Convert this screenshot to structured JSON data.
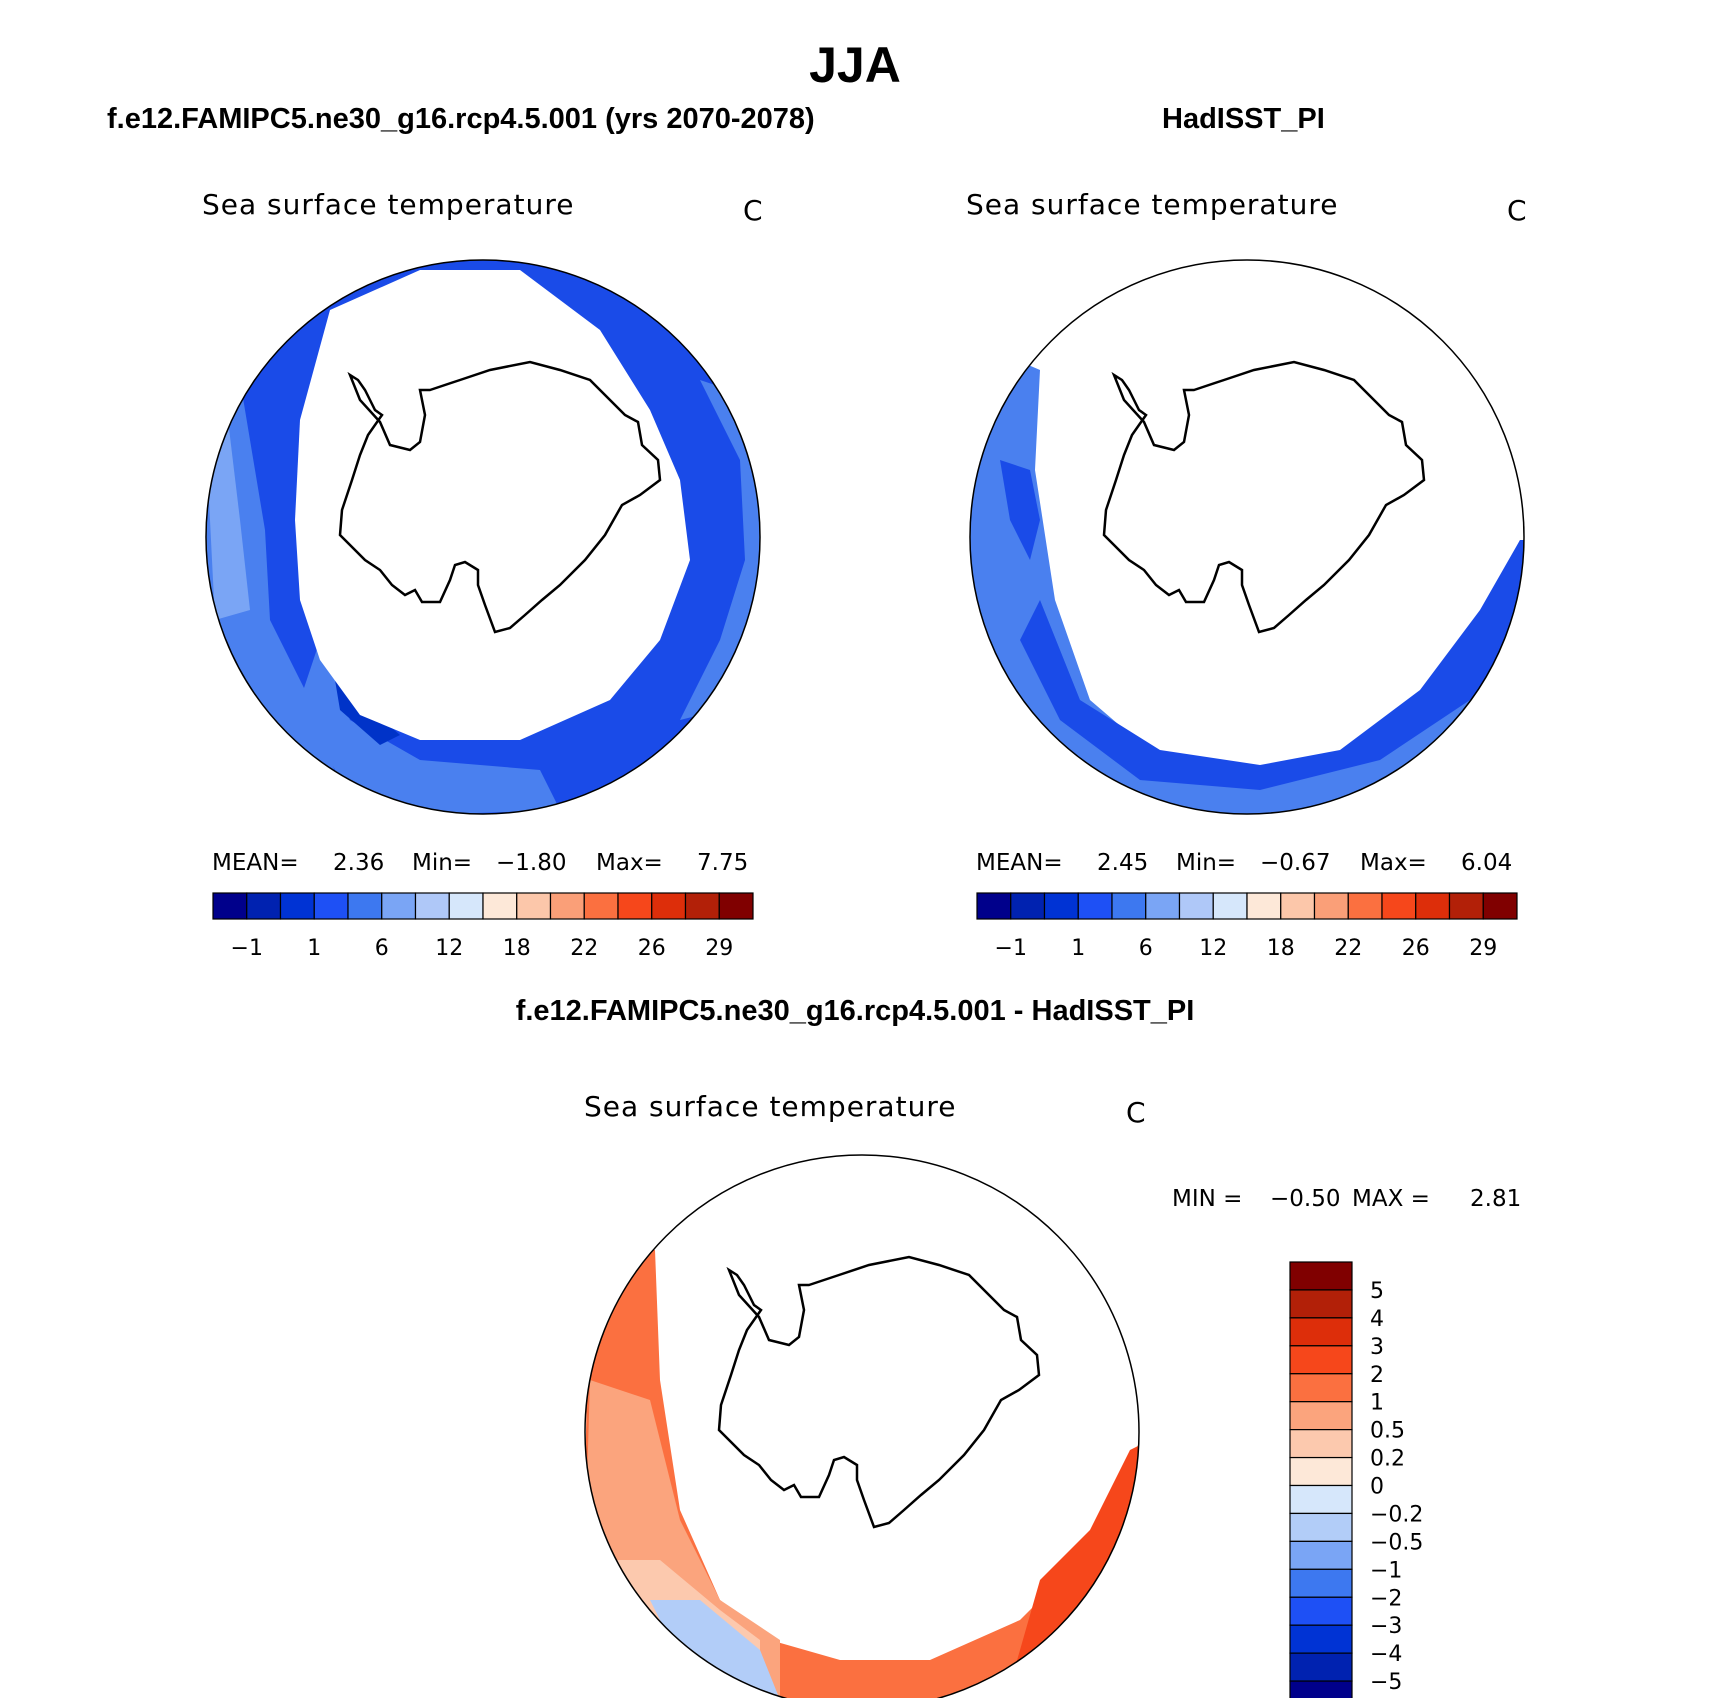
{
  "title": "JJA",
  "panels": [
    {
      "title": "f.e12.FAMIPC5.ne30_g16.rcp4.5.001 (yrs 2070-2078)",
      "variable": "Sea surface temperature",
      "units": "C",
      "mean_label": "MEAN=",
      "mean": "2.36",
      "min_label": "Min=",
      "min": "−1.80",
      "max_label": "Max=",
      "max": "7.75"
    },
    {
      "title": "HadISST_PI",
      "variable": "Sea surface temperature",
      "units": "C",
      "mean_label": "MEAN=",
      "mean": "2.45",
      "min_label": "Min=",
      "min": "−0.67",
      "max_label": "Max=",
      "max": "6.04"
    }
  ],
  "abs_colorbar": {
    "colors": [
      "#00008b",
      "#0022b0",
      "#0033d4",
      "#1e50f5",
      "#3d78f0",
      "#7aa5f5",
      "#afc8f8",
      "#d6e7fb",
      "#fde8d8",
      "#fcc7aa",
      "#fa9f78",
      "#fb7040",
      "#f6471b",
      "#dd2e0a",
      "#b22008",
      "#800000"
    ],
    "tick_labels": [
      "−1",
      "1",
      "6",
      "12",
      "18",
      "22",
      "26",
      "29"
    ]
  },
  "diff_panel": {
    "title": "f.e12.FAMIPC5.ne30_g16.rcp4.5.001 - HadISST_PI",
    "variable": "Sea surface temperature",
    "units": "C",
    "min_label": "MIN =",
    "min": "−0.50",
    "max_label": "MAX =",
    "max": "2.81"
  },
  "diff_colorbar": {
    "colors_top_to_bottom": [
      "#800000",
      "#b22008",
      "#dd2e0a",
      "#f6471b",
      "#fb7040",
      "#fba47d",
      "#fcc9ae",
      "#fde8d8",
      "#d6e7fb",
      "#b2cdf8",
      "#7aa5f5",
      "#3d78f0",
      "#1e50f5",
      "#0033d4",
      "#0022b0",
      "#00008b"
    ],
    "tick_labels": [
      "5",
      "4",
      "3",
      "2",
      "1",
      "0.5",
      "0.2",
      "0",
      "−0.2",
      "−0.5",
      "−1",
      "−2",
      "−3",
      "−4",
      "−5"
    ]
  },
  "colors": {
    "ocean_blue_dark": "#1a4be8",
    "ocean_blue_mid": "#4a80ef",
    "ocean_blue_light": "#7aa5f5",
    "ocean_blue_deepest": "#0033c8",
    "diff_orange": "#fb7040",
    "diff_orange_light": "#fba47d",
    "diff_orange_pale": "#fcc9ae",
    "diff_red": "#f6471b"
  }
}
